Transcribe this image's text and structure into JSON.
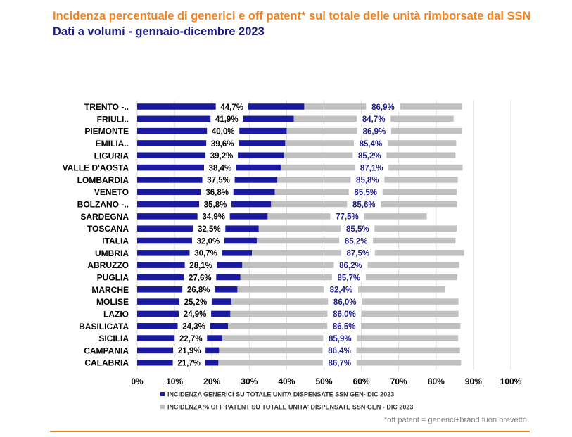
{
  "header": {
    "title": "Incidenza percentuale di generici e off patent* sul totale delle unità rimborsate dal SSN",
    "subtitle": "Dati a volumi - gennaio-dicembre 2023"
  },
  "footnote": "*off patent = generici+brand fuori brevetto",
  "colors": {
    "title": "#f5821f",
    "subtitle": "#1a1a8a",
    "generici_bar": "#1a1aa0",
    "offpatent_bar": "#c0c0c0",
    "label_text": "#1a1a8a",
    "axis_text": "#000000",
    "gridline": "#d9d9d9",
    "rule": "#f5821f"
  },
  "chart_data": {
    "type": "bar",
    "orientation": "horizontal",
    "categories": [
      "TRENTO -..",
      "FRIULI..",
      "PIEMONTE",
      "EMILIA..",
      "LIGURIA",
      "VALLE D'AOSTA",
      "LOMBARDIA",
      "VENETO",
      "BOLZANO -..",
      "SARDEGNA",
      "TOSCANA",
      "ITALIA",
      "UMBRIA",
      "ABRUZZO",
      "PUGLIA",
      "MARCHE",
      "MOLISE",
      "LAZIO",
      "BASILICATA",
      "SICILIA",
      "CAMPANIA",
      "CALABRIA"
    ],
    "series": [
      {
        "name": "INCIDENZA GENERICI SU TOTALE UNITA DISPENSATE SSN GEN- DIC 2023",
        "values": [
          44.7,
          41.9,
          40.0,
          39.6,
          39.2,
          38.4,
          37.5,
          36.8,
          35.8,
          34.9,
          32.5,
          32.0,
          30.7,
          28.1,
          27.6,
          26.8,
          25.2,
          24.9,
          24.3,
          22.7,
          21.9,
          21.7
        ],
        "labels": [
          "44,7%",
          "41,9%",
          "40,0%",
          "39,6%",
          "39,2%",
          "38,4%",
          "37,5%",
          "36,8%",
          "35,8%",
          "34,9%",
          "32,5%",
          "32,0%",
          "30,7%",
          "28,1%",
          "27,6%",
          "26,8%",
          "25,2%",
          "24,9%",
          "24,3%",
          "22,7%",
          "21,9%",
          "21,7%"
        ]
      },
      {
        "name": "INCIDENZA % OFF PATENT SU TOTALE UNITA' DISPENSATE SSN GEN - DIC 2023",
        "values": [
          86.9,
          84.7,
          86.9,
          85.4,
          85.2,
          87.1,
          85.8,
          85.5,
          85.6,
          77.5,
          85.5,
          85.2,
          87.5,
          86.2,
          85.7,
          82.4,
          86.0,
          86.0,
          86.5,
          85.9,
          86.4,
          86.7
        ],
        "labels": [
          "86,9%",
          "84,7%",
          "86,9%",
          "85,4%",
          "85,2%",
          "87,1%",
          "85,8%",
          "85,5%",
          "85,6%",
          "77,5%",
          "85,5%",
          "85,2%",
          "87,5%",
          "86,2%",
          "85,7%",
          "82,4%",
          "86,0%",
          "86,0%",
          "86,5%",
          "85,9%",
          "86,4%",
          "86,7%"
        ]
      }
    ],
    "xlim": [
      0,
      100
    ],
    "xticks": [
      "0%",
      "10%",
      "20%",
      "30%",
      "40%",
      "50%",
      "60%",
      "70%",
      "80%",
      "90%",
      "100%"
    ],
    "grid": true,
    "legend_position": "bottom",
    "title": "",
    "xlabel": "",
    "ylabel": ""
  }
}
